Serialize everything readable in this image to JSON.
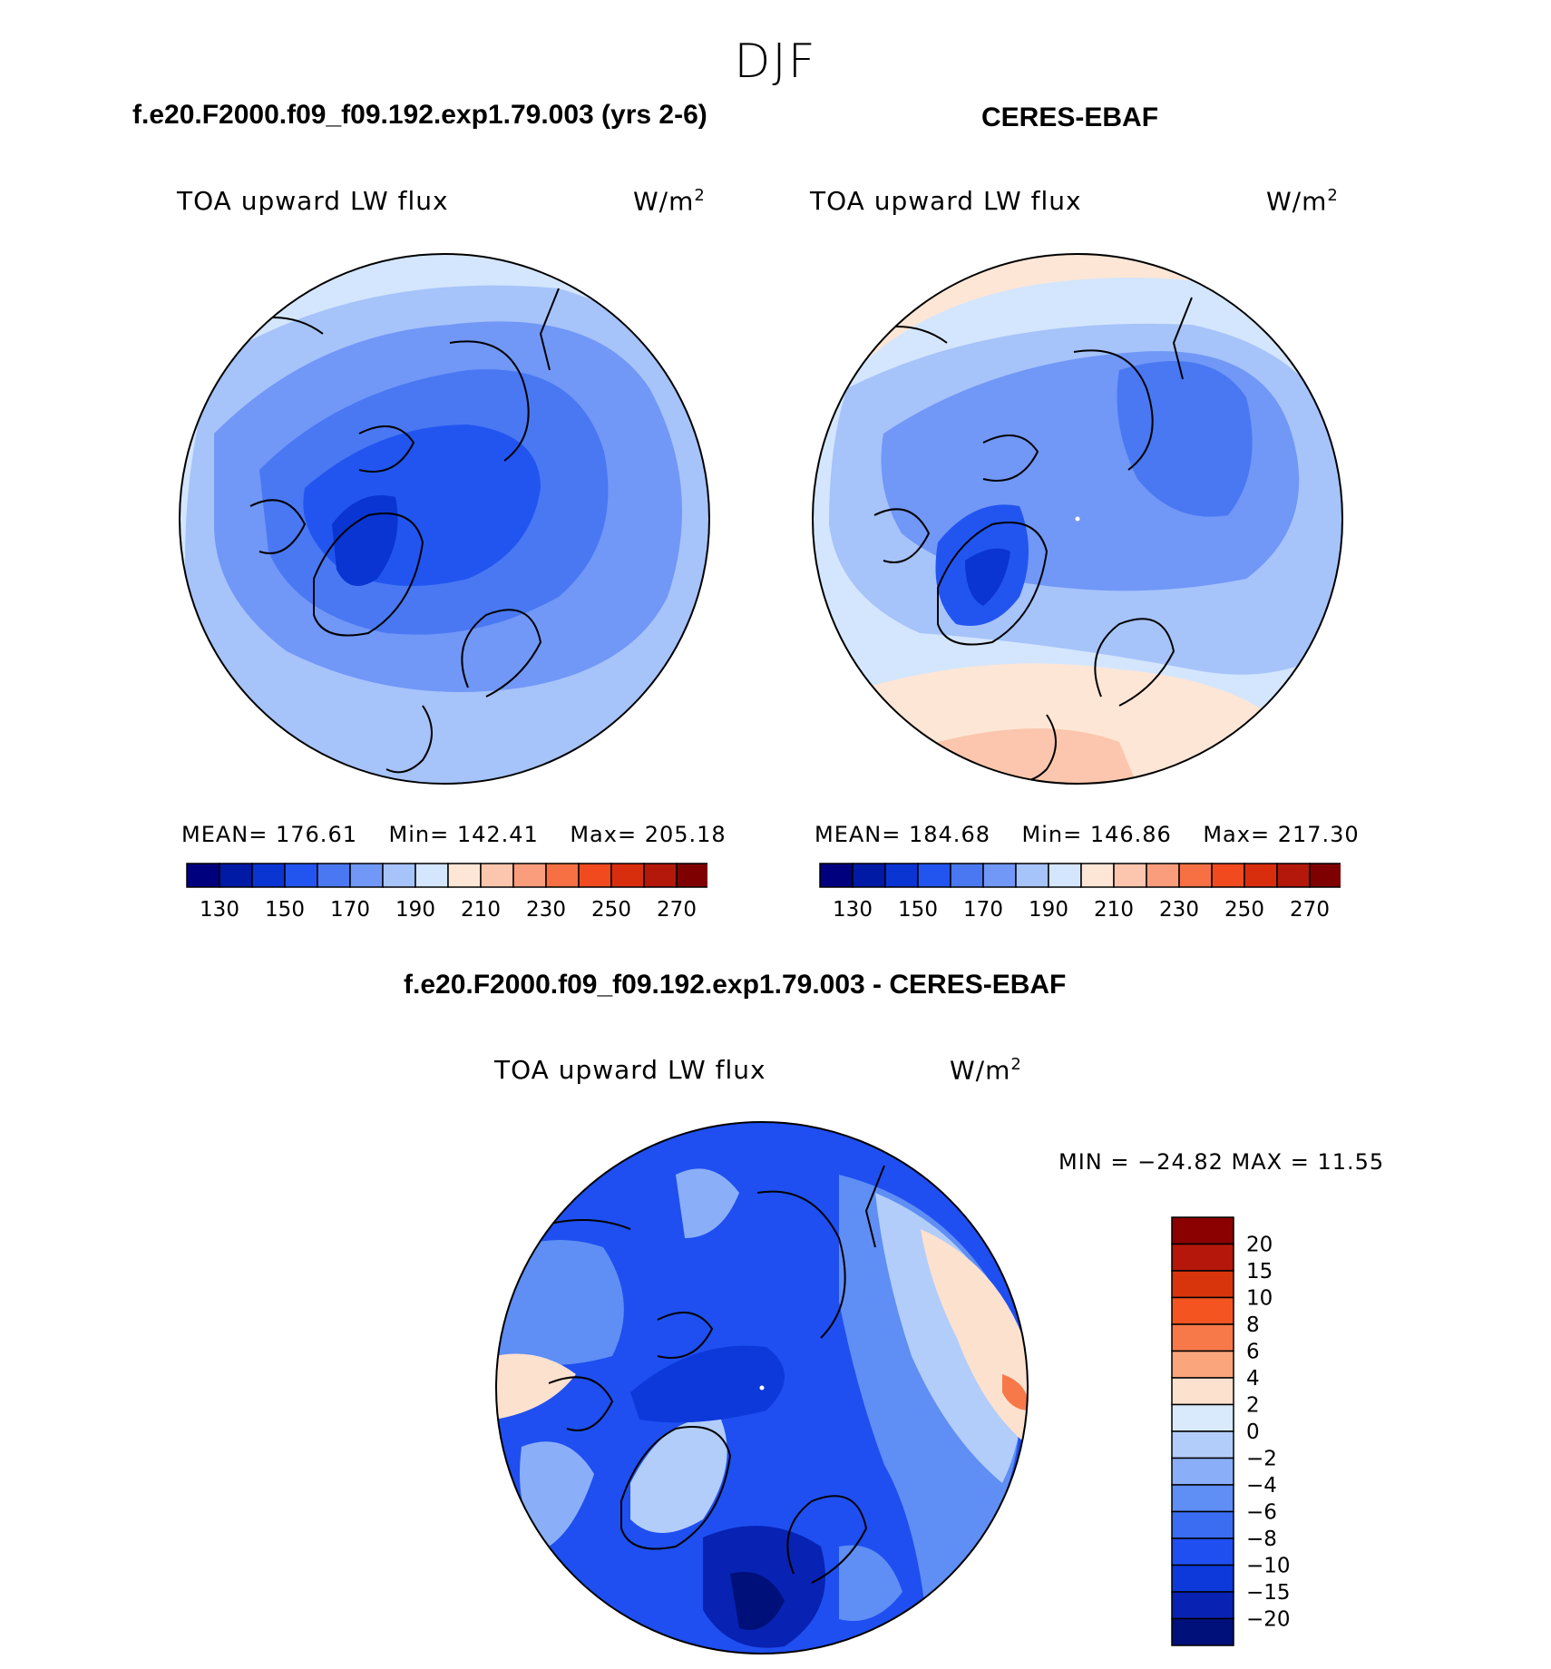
{
  "figure": {
    "title": "DJF"
  },
  "panels": [
    {
      "id": "model",
      "heading": "f.e20.F2000.f09_f09.192.exp1.79.003 (yrs 2-6)",
      "variable": "TOA upward LW flux",
      "units": "W/m",
      "units_power": "2",
      "mean_label": "MEAN=",
      "mean_value": "176.61",
      "min_label": "Min=",
      "min_value": "142.41",
      "max_label": "Max=",
      "max_value": "205.18"
    },
    {
      "id": "obs",
      "heading": "CERES-EBAF",
      "variable": "TOA upward LW flux",
      "units": "W/m",
      "units_power": "2",
      "mean_label": "MEAN=",
      "mean_value": "184.68",
      "min_label": "Min=",
      "min_value": "146.86",
      "max_label": "Max=",
      "max_value": "217.30"
    }
  ],
  "abs_colorbar": {
    "colors": [
      "#00007f",
      "#001aa5",
      "#0a35d2",
      "#2255f0",
      "#4a78f2",
      "#7197f7",
      "#a6c3fa",
      "#d4e6fd",
      "#fde6d6",
      "#fbc6ad",
      "#f99d7d",
      "#f67043",
      "#f04a1e",
      "#d92e0e",
      "#b3180a",
      "#7f0000"
    ],
    "tick_labels": [
      "130",
      "150",
      "170",
      "190",
      "210",
      "230",
      "250",
      "270"
    ]
  },
  "difference": {
    "heading": "f.e20.F2000.f09_f09.192.exp1.79.003 - CERES-EBAF",
    "variable": "TOA upward LW flux",
    "units": "W/m",
    "units_power": "2",
    "minmax_text": "MIN = −24.82 MAX =   11.55",
    "colorbar": {
      "colors": [
        "#8b0000",
        "#b5170a",
        "#d8350c",
        "#f4541f",
        "#f7794a",
        "#fba57c",
        "#fde1cf",
        "#d9eafd",
        "#b2cdfa",
        "#8aaff8",
        "#5f8ef4",
        "#3a6df2",
        "#1f4ff0",
        "#0d39db",
        "#0822b3",
        "#00107a"
      ],
      "tick_labels": [
        "20",
        "15",
        "10",
        "8",
        "6",
        "4",
        "2",
        "0",
        "−2",
        "−4",
        "−6",
        "−8",
        "−10",
        "−15",
        "−20"
      ]
    }
  }
}
